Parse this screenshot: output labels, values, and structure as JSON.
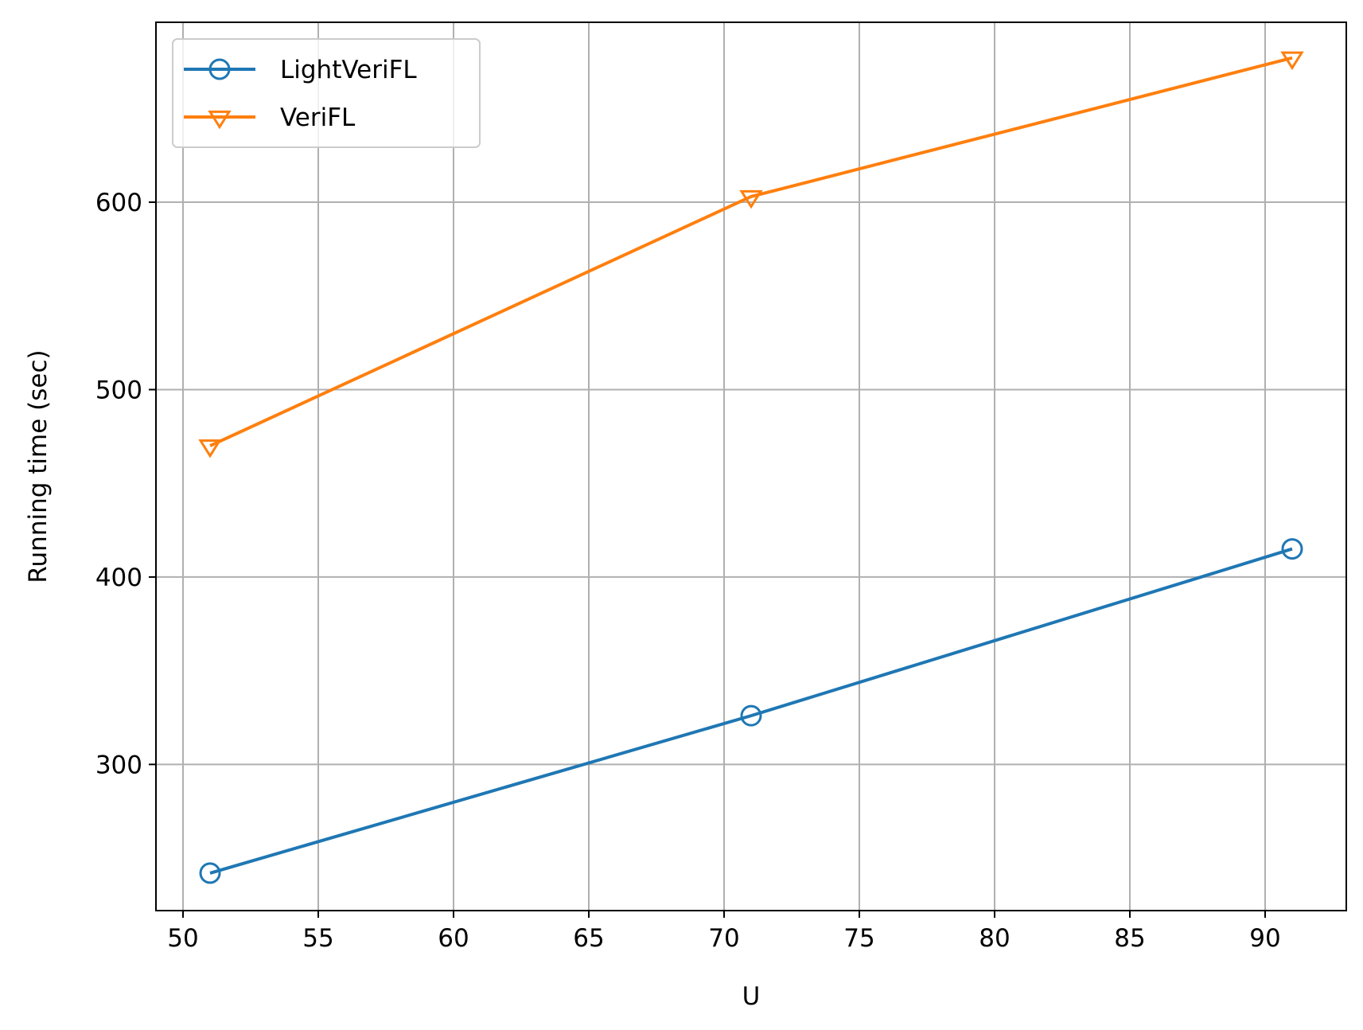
{
  "chart_data": {
    "type": "line",
    "xlabel": "U",
    "ylabel": "Running time (sec)",
    "xlim": [
      49,
      93
    ],
    "ylim": [
      222,
      696
    ],
    "xticks": [
      50,
      55,
      60,
      65,
      70,
      75,
      80,
      85,
      90
    ],
    "yticks": [
      300,
      400,
      500,
      600
    ],
    "grid": true,
    "legend_position": "upper-left",
    "series": [
      {
        "name": "LightVeriFL",
        "color": "#1f77b4",
        "marker": "circle-open",
        "x": [
          51,
          71,
          91
        ],
        "y": [
          242,
          326,
          415
        ]
      },
      {
        "name": "VeriFL",
        "color": "#ff7f0e",
        "marker": "triangle-down-open",
        "x": [
          51,
          71,
          91
        ],
        "y": [
          470,
          603,
          677
        ]
      }
    ]
  }
}
